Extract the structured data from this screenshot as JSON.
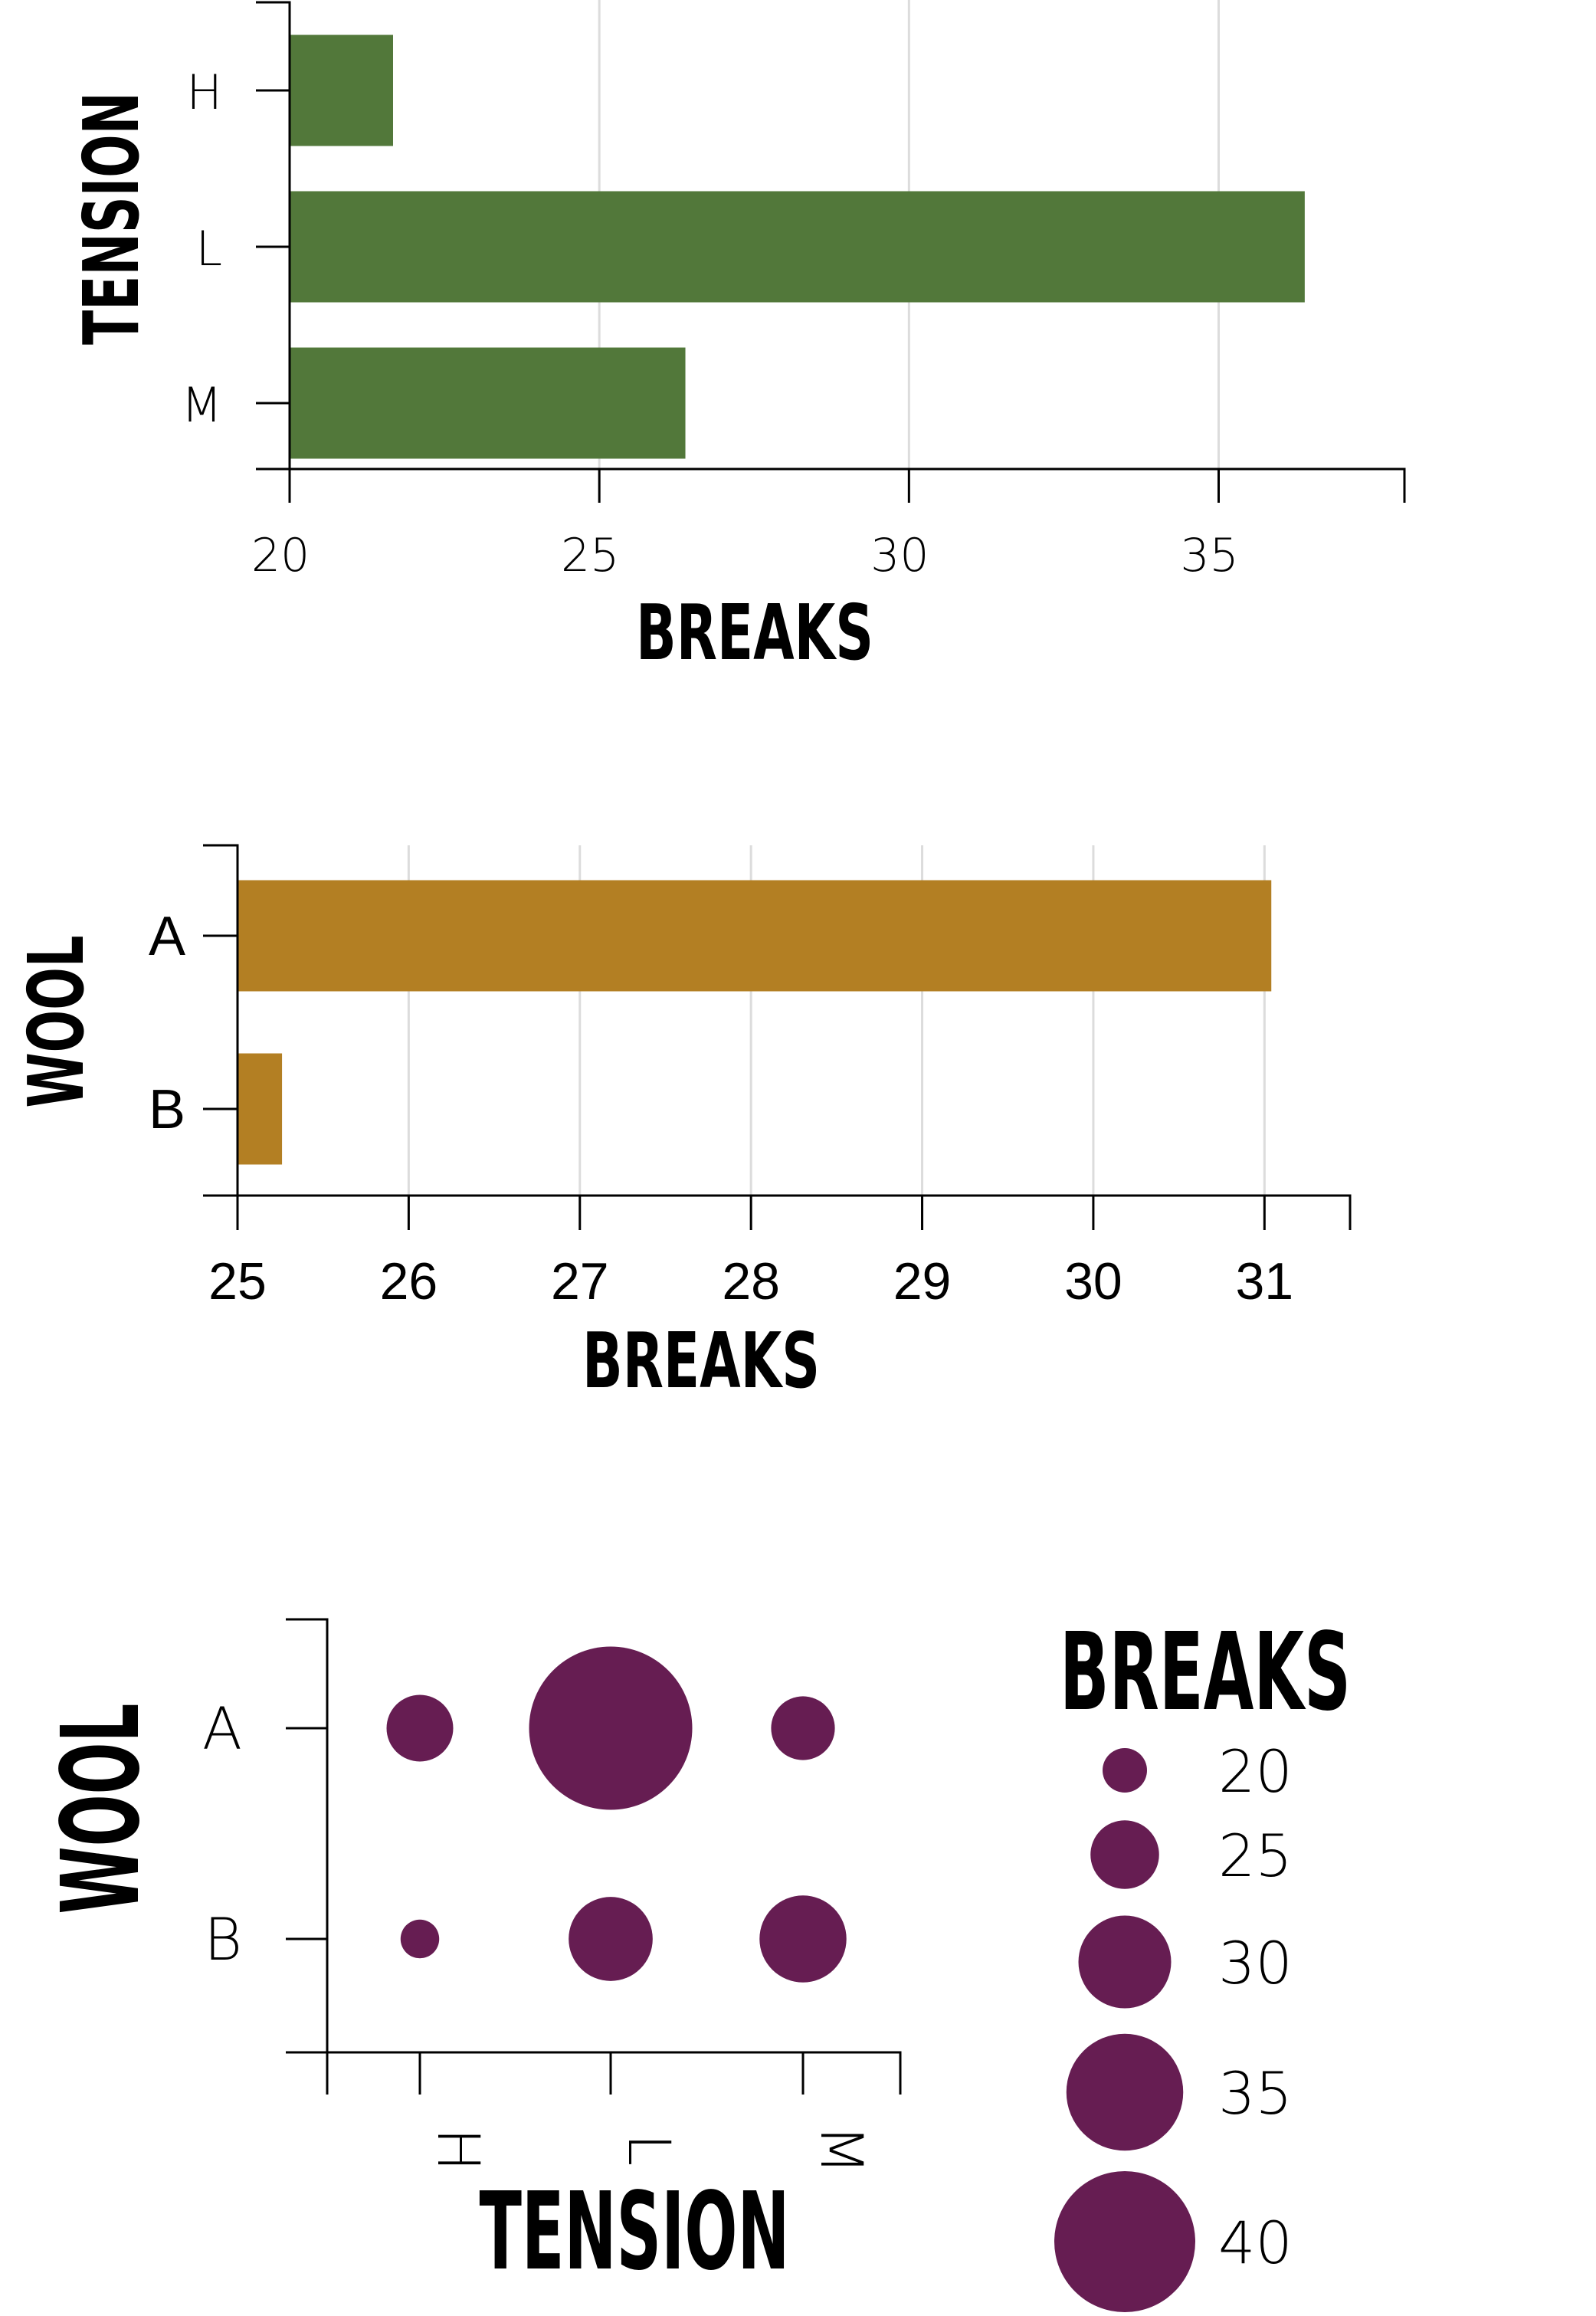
{
  "chart_data": [
    {
      "type": "bar",
      "orientation": "horizontal",
      "categories": [
        "H",
        "L",
        "M"
      ],
      "values": [
        21.67,
        36.39,
        26.39
      ],
      "xlabel": "BREAKS",
      "ylabel": "TENSION",
      "xlim": [
        20,
        38
      ],
      "xticks": [
        "20",
        "25",
        "30",
        "35"
      ],
      "color": "#52783a",
      "grid": true
    },
    {
      "type": "bar",
      "orientation": "horizontal",
      "categories": [
        "A",
        "B"
      ],
      "values": [
        31.04,
        25.26
      ],
      "xlabel": "BREAKS",
      "ylabel": "WOOL",
      "xlim": [
        25,
        31.5
      ],
      "xticks": [
        "25",
        "26",
        "27",
        "28",
        "29",
        "30",
        "31"
      ],
      "color": "#b37f23",
      "grid": true
    },
    {
      "type": "scatter",
      "subtype": "bubble",
      "x_categories": [
        "H",
        "L",
        "M"
      ],
      "y_categories": [
        "A",
        "B"
      ],
      "points": [
        {
          "x": "H",
          "y": "A",
          "size": 24.6
        },
        {
          "x": "L",
          "y": "A",
          "size": 44.6
        },
        {
          "x": "M",
          "y": "A",
          "size": 24.0
        },
        {
          "x": "H",
          "y": "B",
          "size": 18.8
        },
        {
          "x": "L",
          "y": "B",
          "size": 28.2
        },
        {
          "x": "M",
          "y": "B",
          "size": 28.8
        }
      ],
      "xlabel": "TENSION",
      "ylabel": "WOOL",
      "legend": {
        "title": "BREAKS",
        "position": "right",
        "values": [
          "20",
          "25",
          "30",
          "35",
          "40"
        ]
      },
      "color": "#661d52",
      "grid": false
    }
  ]
}
